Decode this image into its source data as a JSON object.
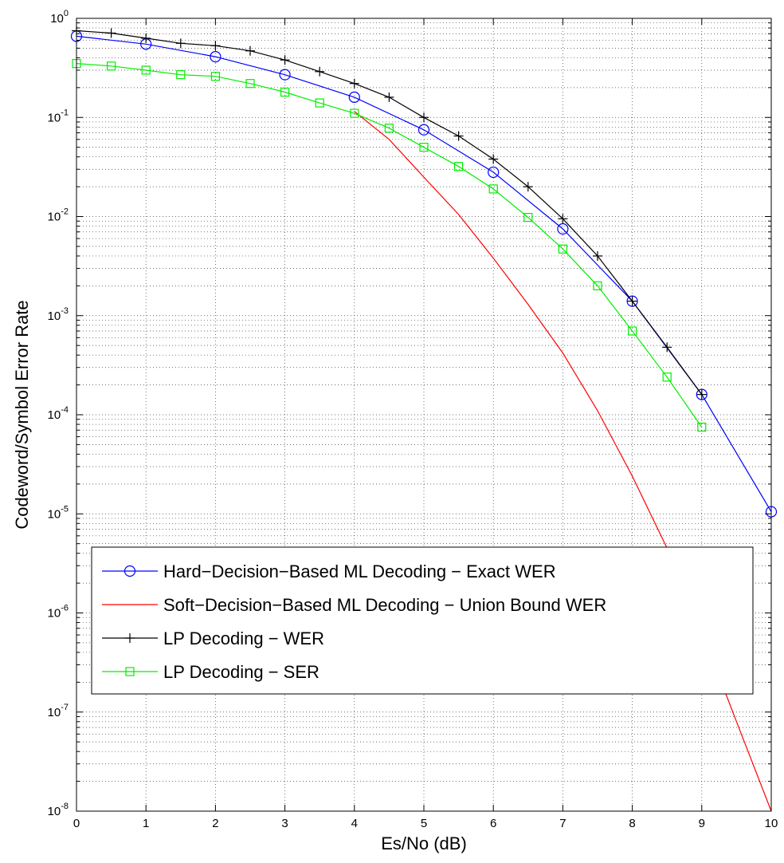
{
  "chart_data": {
    "type": "line",
    "xlabel": "Es/No (dB)",
    "ylabel": "Codeword/Symbol Error Rate",
    "xlim": [
      0,
      10
    ],
    "ylim": [
      1e-08,
      1
    ],
    "yscale": "log",
    "grid": true,
    "legend_position": "bottom-left",
    "x_ticks": [
      "0",
      "1",
      "2",
      "3",
      "4",
      "5",
      "6",
      "7",
      "8",
      "9",
      "10"
    ],
    "y_ticks": [
      {
        "base": "10",
        "exp": "0"
      },
      {
        "base": "10",
        "exp": "-1"
      },
      {
        "base": "10",
        "exp": "-2"
      },
      {
        "base": "10",
        "exp": "-3"
      },
      {
        "base": "10",
        "exp": "-4"
      },
      {
        "base": "10",
        "exp": "-5"
      },
      {
        "base": "10",
        "exp": "-6"
      },
      {
        "base": "10",
        "exp": "-7"
      },
      {
        "base": "10",
        "exp": "-8"
      }
    ],
    "series": [
      {
        "name": "Hard−Decision−Based ML Decoding − Exact WER",
        "color": "#0000ff",
        "marker": "circle",
        "x": [
          0,
          1,
          2,
          3,
          4,
          5,
          6,
          7,
          8,
          9,
          10
        ],
        "y": [
          0.66,
          0.55,
          0.41,
          0.27,
          0.16,
          0.075,
          0.028,
          0.0075,
          0.0014,
          0.00016,
          1.05e-05
        ]
      },
      {
        "name": "Soft−Decision−Based ML Decoding − Union Bound WER",
        "color": "#ff0000",
        "marker": "none",
        "x": [
          4,
          4.5,
          5,
          5.5,
          6,
          6.5,
          7,
          7.5,
          8,
          8.5,
          9,
          9.5,
          10
        ],
        "y": [
          0.115,
          0.06,
          0.025,
          0.0105,
          0.0038,
          0.0013,
          0.00042,
          0.00011,
          2.4e-05,
          4.5e-06,
          6.5e-07,
          8e-08,
          1e-08
        ]
      },
      {
        "name": "LP Decoding − WER",
        "color": "#000000",
        "marker": "plus",
        "x": [
          0,
          0.5,
          1,
          1.5,
          2,
          2.5,
          3,
          3.5,
          4,
          4.5,
          5,
          5.5,
          6,
          6.5,
          7,
          7.5,
          8,
          8.5,
          9
        ],
        "y": [
          0.75,
          0.71,
          0.63,
          0.56,
          0.53,
          0.47,
          0.38,
          0.29,
          0.22,
          0.16,
          0.1,
          0.065,
          0.038,
          0.02,
          0.0095,
          0.004,
          0.0014,
          0.00048,
          0.00016
        ]
      },
      {
        "name": "LP Decoding − SER",
        "color": "#00ee00",
        "marker": "square",
        "x": [
          0,
          0.5,
          1,
          1.5,
          2,
          2.5,
          3,
          3.5,
          4,
          4.5,
          5,
          5.5,
          6,
          6.5,
          7,
          7.5,
          8,
          8.5,
          9
        ],
        "y": [
          0.35,
          0.33,
          0.3,
          0.27,
          0.26,
          0.22,
          0.18,
          0.14,
          0.11,
          0.078,
          0.05,
          0.032,
          0.019,
          0.0098,
          0.0047,
          0.002,
          0.0007,
          0.00024,
          7.5e-05
        ]
      }
    ]
  }
}
